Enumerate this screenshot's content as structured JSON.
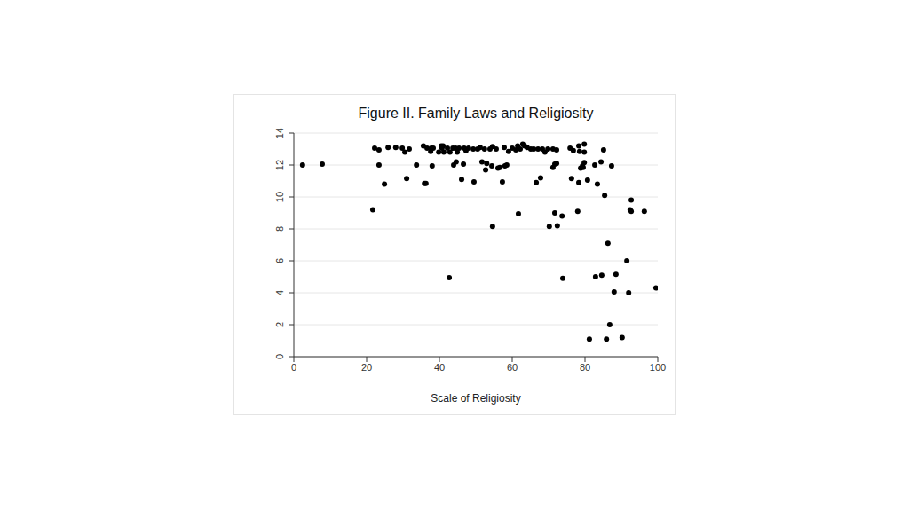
{
  "chart_data": {
    "type": "scatter",
    "title": "Figure II.  Family Laws and Religiosity",
    "x_label": "Scale of Religiosity",
    "x": [
      2.4,
      7.8,
      21.7,
      22.2,
      23.4,
      23.4,
      24.9,
      25.9,
      28,
      29.8,
      30.5,
      31,
      31.7,
      33.7,
      35.6,
      35.9,
      36.3,
      36.6,
      37.6,
      37.8,
      38,
      38.3,
      39.8,
      40.5,
      40.7,
      41,
      41.2,
      42.2,
      42.7,
      42.9,
      43.7,
      43.9,
      44.4,
      44.6,
      44.9,
      45.4,
      46.1,
      46.6,
      46.8,
      47.3,
      48,
      49.3,
      49.5,
      50.5,
      51.2,
      51.7,
      52.4,
      52.7,
      53,
      53.9,
      54.4,
      54.6,
      54.6,
      55.6,
      56.1,
      56.6,
      57.3,
      57.8,
      58,
      58.5,
      59,
      60,
      61,
      61.5,
      61.7,
      62.2,
      62.9,
      63.4,
      64.1,
      65.1,
      65.9,
      66.6,
      67.1,
      67.8,
      68.3,
      69,
      69.8,
      70.2,
      71.2,
      71.2,
      71.7,
      71.7,
      72.2,
      72.2,
      72.4,
      73.7,
      73.9,
      75.9,
      76.3,
      76.8,
      78,
      78.3,
      78.3,
      78.5,
      78.8,
      79.3,
      79.5,
      79.8,
      79.8,
      79.8,
      80.7,
      81.2,
      82.7,
      82.9,
      83.4,
      84.4,
      84.6,
      85.1,
      85.4,
      85.9,
      86.3,
      86.8,
      87.3,
      88,
      88.5,
      90.2,
      91.5,
      92,
      92.4,
      92.7,
      92.7,
      96.3,
      99.5
    ],
    "values": [
      12.0,
      12.05,
      9.2,
      13.05,
      12.95,
      12.0,
      10.8,
      13.1,
      13.1,
      13.05,
      12.8,
      11.15,
      13.0,
      12.0,
      13.2,
      10.85,
      10.85,
      13.05,
      12.85,
      13.05,
      11.95,
      13.05,
      12.8,
      13.2,
      13.05,
      13.2,
      12.8,
      13.05,
      4.95,
      12.8,
      13.05,
      12.0,
      13.05,
      12.2,
      12.8,
      13.05,
      11.1,
      12.05,
      13.05,
      12.9,
      13.05,
      13.0,
      10.95,
      13.0,
      13.1,
      12.2,
      13.0,
      11.7,
      12.1,
      13.0,
      11.95,
      13.15,
      8.15,
      13.0,
      11.8,
      11.85,
      10.95,
      13.1,
      11.95,
      12.0,
      12.85,
      13.05,
      12.95,
      13.2,
      8.95,
      13.0,
      13.3,
      13.2,
      13.1,
      13.0,
      13.0,
      10.9,
      13.0,
      11.2,
      13.0,
      12.8,
      13.0,
      8.15,
      13.0,
      11.85,
      12.05,
      9.0,
      12.95,
      12.1,
      8.2,
      8.8,
      4.9,
      13.05,
      11.15,
      12.9,
      9.1,
      13.2,
      10.9,
      12.85,
      11.8,
      11.95,
      11.85,
      12.15,
      13.3,
      12.8,
      11.05,
      1.1,
      12.0,
      5.0,
      10.8,
      12.2,
      5.1,
      12.95,
      10.1,
      1.1,
      7.1,
      2.0,
      11.95,
      4.05,
      5.15,
      1.2,
      6.0,
      4.0,
      9.2,
      9.8,
      9.1,
      9.1,
      4.3
    ],
    "color": "#000000",
    "marker": "circle",
    "xlim": [
      0,
      100
    ],
    "xticks": [
      0,
      20,
      40,
      60,
      80,
      100
    ],
    "ylim": [
      0,
      14
    ],
    "yticks": [
      0,
      2,
      4,
      6,
      8,
      10,
      12,
      14
    ],
    "grid": true
  }
}
